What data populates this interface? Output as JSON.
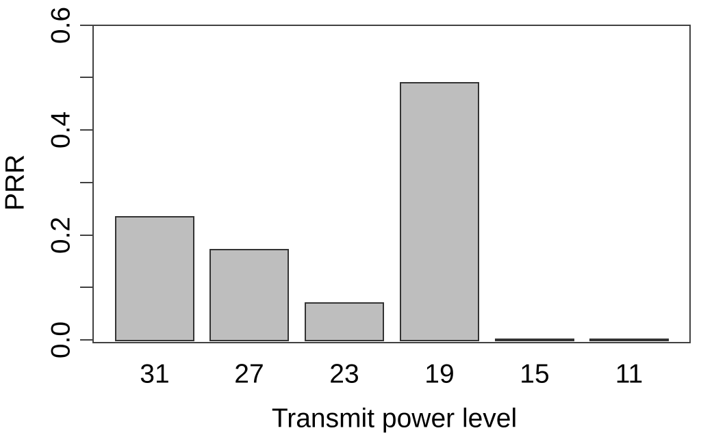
{
  "chart_data": {
    "type": "bar",
    "title": "",
    "categories": [
      "31",
      "27",
      "23",
      "19",
      "15",
      "11"
    ],
    "values": [
      0.236,
      0.174,
      0.072,
      0.492,
      0.002,
      0.002
    ],
    "xlabel": "Transmit power level",
    "ylabel": "PRR",
    "ylim": [
      0,
      0.6
    ],
    "yticks": [
      {
        "value": 0.0,
        "label": "0.0"
      },
      {
        "value": 0.1,
        "label": ""
      },
      {
        "value": 0.2,
        "label": "0.2"
      },
      {
        "value": 0.3,
        "label": ""
      },
      {
        "value": 0.4,
        "label": "0.4"
      },
      {
        "value": 0.5,
        "label": ""
      },
      {
        "value": 0.6,
        "label": "0.6"
      }
    ],
    "grid": false,
    "legend_position": "none",
    "bar_fill_color": "#bebebe",
    "bar_border_color": "#333333",
    "axis_color": "#404040",
    "text_color": "#000000",
    "background_color": "#ffffff"
  }
}
